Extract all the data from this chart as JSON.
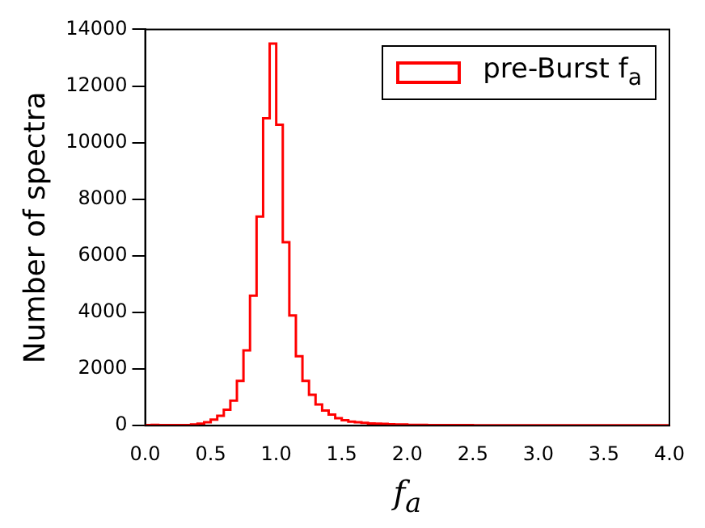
{
  "chart_data": {
    "type": "histogram",
    "xlabel": "f$_{a}$",
    "ylabel": "Number of spectra",
    "bins": [
      0,
      0.05,
      0.1,
      0.15,
      0.2,
      0.25,
      0.3,
      0.35,
      0.4,
      0.45,
      0.5,
      0.55,
      0.6,
      0.65,
      0.7,
      0.75,
      0.8,
      0.85,
      0.9,
      0.95,
      1.0,
      1.05,
      1.1,
      1.15,
      1.2,
      1.25,
      1.3,
      1.35,
      1.4,
      1.45,
      1.5,
      1.55,
      1.6,
      1.65,
      1.7,
      1.75,
      1.8,
      1.85,
      1.9,
      1.95,
      2.0,
      2.05,
      2.1,
      2.15,
      2.2,
      2.25,
      2.3,
      2.35,
      2.4,
      2.45,
      2.5,
      2.55,
      2.6,
      2.65,
      2.7,
      2.75,
      2.8,
      2.85,
      2.9,
      2.95,
      3.0,
      3.05,
      3.1,
      3.15,
      3.2,
      3.25,
      3.3,
      3.35,
      3.4,
      3.45,
      3.5,
      3.55,
      3.6,
      3.65,
      3.7,
      3.75,
      3.8,
      3.85,
      3.9,
      3.95,
      4.0
    ],
    "series": [
      {
        "name": "pre-Burst f$_{a}$",
        "color": "#ff0000",
        "values": [
          20,
          30,
          20,
          20,
          20,
          20,
          20,
          40,
          70,
          120,
          210,
          350,
          560,
          880,
          1580,
          2660,
          4590,
          7390,
          10860,
          13500,
          10630,
          6480,
          3890,
          2450,
          1580,
          1090,
          750,
          530,
          390,
          260,
          190,
          140,
          120,
          100,
          80,
          70,
          60,
          50,
          40,
          40,
          30,
          30,
          30,
          20,
          20,
          20,
          20,
          20,
          20,
          20,
          10,
          10,
          10,
          10,
          10,
          10,
          10,
          10,
          10,
          10,
          10,
          10,
          10,
          10,
          10,
          10,
          10,
          10,
          10,
          10,
          10,
          10,
          10,
          10,
          10,
          10,
          10,
          10,
          10,
          10
        ]
      }
    ],
    "xlim": [
      0,
      4
    ],
    "ylim": [
      0,
      14000
    ],
    "xticks": [
      {
        "value": 0,
        "label": "0.0"
      },
      {
        "value": 0.5,
        "label": "0.5"
      },
      {
        "value": 1,
        "label": "1.0"
      },
      {
        "value": 1.5,
        "label": "1.5"
      },
      {
        "value": 2,
        "label": "2.0"
      },
      {
        "value": 2.5,
        "label": "2.5"
      },
      {
        "value": 3,
        "label": "3.0"
      },
      {
        "value": 3.5,
        "label": "3.5"
      },
      {
        "value": 4,
        "label": "4.0"
      }
    ],
    "yticks": [
      0,
      2000,
      4000,
      6000,
      8000,
      10000,
      12000,
      14000
    ],
    "grid": false,
    "legend": "top right"
  }
}
